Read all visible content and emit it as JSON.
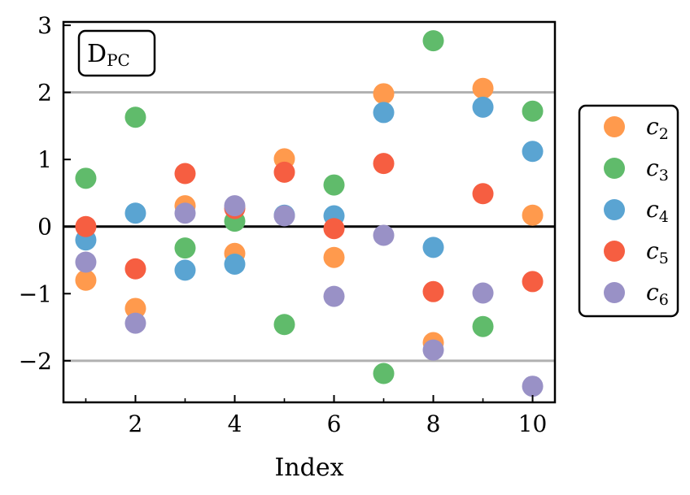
{
  "chart_data": {
    "type": "scatter",
    "title": "",
    "xlabel": "Index",
    "ylabel": "",
    "xlim": [
      0.55,
      10.45
    ],
    "ylim": [
      -2.62,
      3.05
    ],
    "x_ticks": [
      2,
      4,
      6,
      8,
      10
    ],
    "x_minor_ticks": [
      1,
      3,
      5,
      7,
      9
    ],
    "y_ticks": [
      -2,
      -1,
      0,
      1,
      2,
      3
    ],
    "y_tick_labels": [
      "−2",
      "−1",
      "0",
      "1",
      "2",
      "3"
    ],
    "reference_lines": [
      {
        "y": 2,
        "color": "#b0b0b0"
      },
      {
        "y": -2,
        "color": "#b0b0b0"
      },
      {
        "y": 0,
        "color": "#000000"
      }
    ],
    "annotation": {
      "main": "D",
      "sub": "PC",
      "position": "top-left"
    },
    "legend": {
      "position": "outside-right"
    },
    "x": [
      1,
      2,
      3,
      4,
      5,
      6,
      7,
      8,
      9,
      10
    ],
    "series": [
      {
        "name": "c",
        "subscript": "2",
        "color": "#ff9a4d",
        "values": [
          -0.8,
          -1.22,
          0.31,
          -0.4,
          1.01,
          -0.46,
          1.98,
          -1.73,
          2.06,
          0.17
        ]
      },
      {
        "name": "c",
        "subscript": "3",
        "color": "#60bb6b",
        "values": [
          0.72,
          1.63,
          -0.32,
          0.08,
          -1.46,
          0.62,
          -2.19,
          2.77,
          -1.49,
          1.72
        ]
      },
      {
        "name": "c",
        "subscript": "4",
        "color": "#5aa4d2",
        "values": [
          -0.2,
          0.2,
          -0.65,
          -0.56,
          0.17,
          0.16,
          1.7,
          -0.31,
          1.78,
          1.12
        ]
      },
      {
        "name": "c",
        "subscript": "5",
        "color": "#f65e41",
        "values": [
          0.0,
          -0.63,
          0.79,
          0.27,
          0.81,
          -0.03,
          0.94,
          -0.97,
          0.49,
          -0.82
        ]
      },
      {
        "name": "c",
        "subscript": "6",
        "color": "#9991c6",
        "values": [
          -0.53,
          -1.44,
          0.2,
          0.31,
          0.16,
          -1.04,
          -0.13,
          -1.84,
          -0.99,
          -2.38
        ]
      }
    ]
  }
}
